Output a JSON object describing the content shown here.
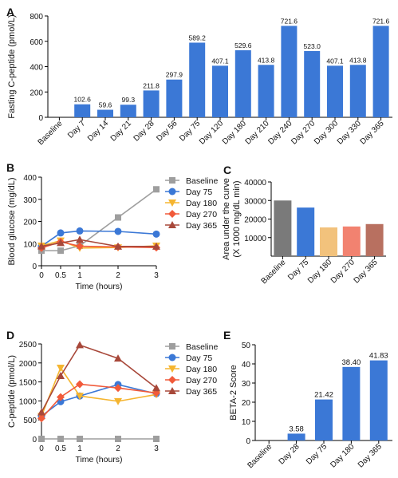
{
  "chart_data": [
    {
      "panel": "A",
      "type": "bar",
      "ylabel": "Fasting C-peptide (pmol/L)",
      "ylim": [
        0,
        800
      ],
      "yticks": [
        0,
        200,
        400,
        600,
        800
      ],
      "color": "#3b78d6",
      "categories": [
        "Baseline",
        "Day 7",
        "Day 14",
        "Day 21",
        "Day 28",
        "Day 56",
        "Day 75",
        "Day 120",
        "Day 180",
        "Day 210",
        "Day 240",
        "Day 270",
        "Day 300",
        "Day 330",
        "Day 365"
      ],
      "values": [
        0,
        102.6,
        59.6,
        99.3,
        211.8,
        297.9,
        589.2,
        407.1,
        529.6,
        413.8,
        721.6,
        523.0,
        407.1,
        413.8,
        721.6
      ],
      "data_labels": [
        "",
        "102.6",
        "59.6",
        "99.3",
        "211.8",
        "297.9",
        "589.2",
        "407.1",
        "529.6",
        "413.8",
        "721.6",
        "523.0",
        "407.1",
        "413.8",
        "721.6"
      ]
    },
    {
      "panel": "B",
      "type": "line",
      "xlabel": "Time (hours)",
      "ylabel": "Blood glucose (mg/dL)",
      "ylim": [
        0,
        400
      ],
      "yticks": [
        0,
        100,
        200,
        300,
        400
      ],
      "x": [
        0,
        0.5,
        1,
        2,
        3
      ],
      "xtick_labels": [
        "0",
        "0.5",
        "1",
        "2",
        "3"
      ],
      "legend_position": "right",
      "series": [
        {
          "name": "Baseline",
          "marker": "square",
          "color": "#9e9e9e",
          "values": [
            68,
            68,
            90,
            218,
            345
          ]
        },
        {
          "name": "Day 75",
          "marker": "circle",
          "color": "#3b78d6",
          "values": [
            88,
            148,
            157,
            155,
            143
          ]
        },
        {
          "name": "Day 180",
          "marker": "tri-down",
          "color": "#f5b530",
          "values": [
            90,
            113,
            80,
            82,
            90
          ]
        },
        {
          "name": "Day 270",
          "marker": "diamond",
          "color": "#f15a3a",
          "values": [
            80,
            108,
            88,
            85,
            82
          ]
        },
        {
          "name": "Day 365",
          "marker": "tri-up",
          "color": "#a8483a",
          "values": [
            88,
            103,
            118,
            87,
            87
          ]
        }
      ]
    },
    {
      "panel": "C",
      "type": "bar",
      "ylabel": "Area under the curve (X 1000 mg/dL min)",
      "ylabel_lines": [
        "Area under the curve",
        "(X 1000 mg/dL min)"
      ],
      "ylim": [
        0,
        40000
      ],
      "yticks": [
        10000,
        20000,
        30000,
        40000
      ],
      "categories": [
        "Baseline",
        "Day 75",
        "Day 180",
        "Day 270",
        "Day 365"
      ],
      "values": [
        30000,
        26200,
        15500,
        16000,
        17300
      ],
      "colors": [
        "#7a7a7a",
        "#3b78d6",
        "#f2c27c",
        "#f28270",
        "#b87060"
      ]
    },
    {
      "panel": "D",
      "type": "line",
      "xlabel": "Time (hours)",
      "ylabel": "C-peptide (pmol/L)",
      "ylim": [
        0,
        2500
      ],
      "yticks": [
        0,
        500,
        1000,
        1500,
        2000,
        2500
      ],
      "x": [
        0,
        0.5,
        1,
        2,
        3
      ],
      "xtick_labels": [
        "0",
        "0.5",
        "1",
        "2",
        "3"
      ],
      "legend_position": "right",
      "series": [
        {
          "name": "Baseline",
          "marker": "square",
          "color": "#9e9e9e",
          "values": [
            0,
            0,
            0,
            0,
            0
          ]
        },
        {
          "name": "Day 75",
          "marker": "circle",
          "color": "#3b78d6",
          "values": [
            600,
            980,
            1130,
            1430,
            1190
          ]
        },
        {
          "name": "Day 180",
          "marker": "tri-down",
          "color": "#f5b530",
          "values": [
            600,
            1870,
            1130,
            990,
            1170
          ]
        },
        {
          "name": "Day 270",
          "marker": "diamond",
          "color": "#f15a3a",
          "values": [
            540,
            1100,
            1440,
            1340,
            1210
          ]
        },
        {
          "name": "Day 365",
          "marker": "tri-up",
          "color": "#a8483a",
          "values": [
            700,
            1660,
            2470,
            2120,
            1340
          ]
        }
      ]
    },
    {
      "panel": "E",
      "type": "bar",
      "ylabel": "BETA-2 Score",
      "ylim": [
        0,
        50
      ],
      "yticks": [
        0,
        10,
        20,
        30,
        40,
        50
      ],
      "color": "#3b78d6",
      "categories": [
        "Baseline",
        "Day 28",
        "Day 75",
        "Day 180",
        "Day 365"
      ],
      "values": [
        0,
        3.58,
        21.42,
        38.4,
        41.83
      ],
      "data_labels": [
        "",
        "3.58",
        "21.42",
        "38.40",
        "41.83"
      ]
    }
  ]
}
